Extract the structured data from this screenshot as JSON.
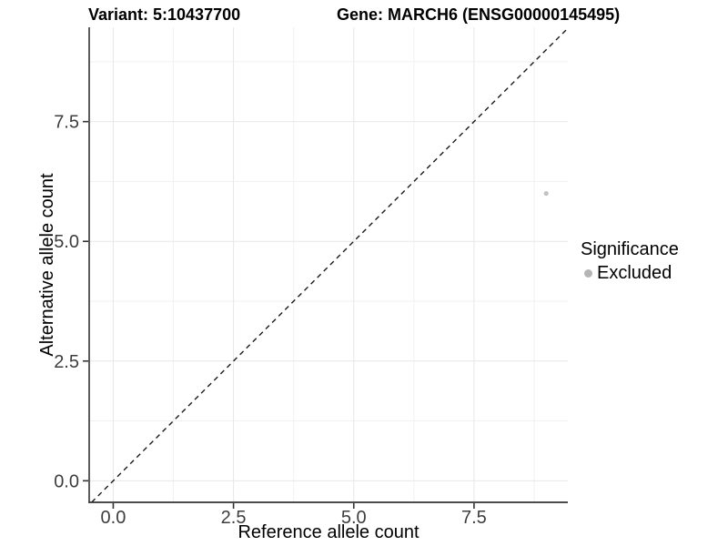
{
  "header": {
    "title_left": "Variant: 5:10437700",
    "title_right": "Gene: MARCH6 (ENSG00000145495)"
  },
  "chart_data": {
    "type": "scatter",
    "title": "Variant: 5:10437700    Gene: MARCH6 (ENSG00000145495)",
    "xlabel": "Reference allele count",
    "ylabel": "Alternative allele count",
    "xlim": [
      -0.5,
      9.45
    ],
    "ylim": [
      -0.45,
      9.47
    ],
    "x_ticks": [
      0.0,
      2.5,
      5.0,
      7.5
    ],
    "x_tick_labels": [
      "0.0",
      "2.5",
      "5.0",
      "7.5"
    ],
    "y_ticks": [
      0.0,
      2.5,
      5.0,
      7.5
    ],
    "y_tick_labels": [
      "0.0",
      "2.5",
      "5.0",
      "7.5"
    ],
    "x_minor_ticks": [
      1.25,
      3.75,
      6.25,
      8.75
    ],
    "y_minor_ticks": [
      1.25,
      3.75,
      6.25,
      8.75
    ],
    "grid": true,
    "series": [
      {
        "name": "Excluded",
        "color": "#c2c2c2",
        "points": [
          {
            "x": 9,
            "y": 6
          }
        ]
      }
    ],
    "reference_line": {
      "kind": "identity",
      "slope": 1,
      "intercept": 0,
      "style": "dashed",
      "color": "#1a1a1a"
    },
    "legend": {
      "title": "Significance",
      "position": "right",
      "items": [
        {
          "label": "Excluded",
          "marker": "circle",
          "color": "#b5b5b5"
        }
      ]
    }
  },
  "colors": {
    "background": "#ffffff",
    "grid_major": "#e7e7e7",
    "grid_minor": "#f1f1f1",
    "axis_line": "#333333",
    "tick_mark": "#333333",
    "tick_label": "#3d3d3d",
    "text": "#000000"
  }
}
